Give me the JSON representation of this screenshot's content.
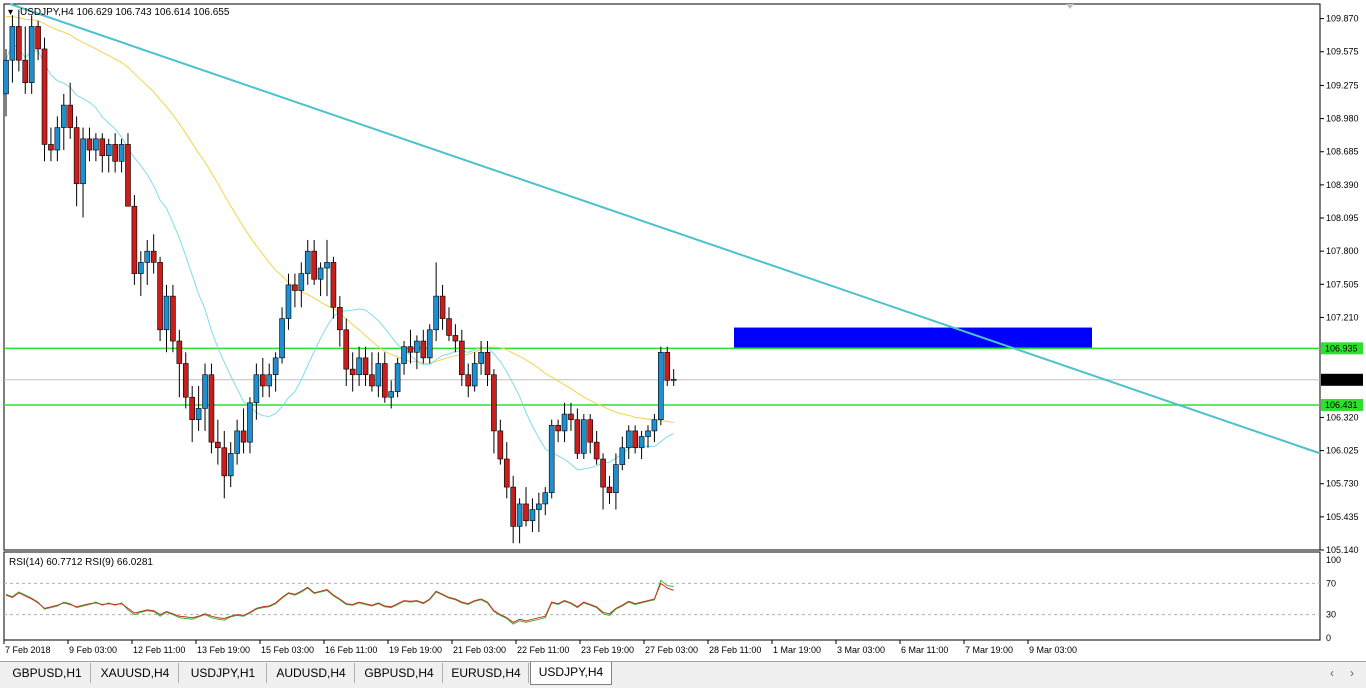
{
  "symbol_header": "USDJPY,H4  106.629 106.743 106.614 106.655",
  "rsi_header": "RSI(14) 60.7712  RSI(9) 66.0281",
  "price_axis": [
    "109.870",
    "109.575",
    "109.275",
    "108.980",
    "108.685",
    "108.390",
    "108.095",
    "107.800",
    "107.505",
    "107.210",
    "106.320",
    "106.025",
    "105.730",
    "105.435",
    "105.140"
  ],
  "rsi_axis": [
    "100",
    "70",
    "30",
    "0"
  ],
  "time_axis": [
    "7 Feb 2018",
    "9 Feb 03:00",
    "12 Feb 11:00",
    "13 Feb 19:00",
    "15 Feb 03:00",
    "16 Feb 11:00",
    "19 Feb 19:00",
    "21 Feb 03:00",
    "22 Feb 11:00",
    "23 Feb 19:00",
    "27 Feb 03:00",
    "28 Feb 11:00",
    "1 Mar 19:00",
    "3 Mar 03:00",
    "6 Mar 11:00",
    "7 Mar 19:00",
    "9 Mar 03:00"
  ],
  "level_labels": {
    "upper": "106.935",
    "current": "106.655",
    "lower": "106.431"
  },
  "tabs": [
    "GBPUSD,H1",
    "XAUUSD,H4",
    "USDJPY,H1",
    "AUDUSD,H4",
    "GBPUSD,H4",
    "EURUSD,H4",
    "USDJPY,H4"
  ],
  "active_tab": "USDJPY,H4",
  "colors": {
    "bull": "#1e8fd0",
    "bear": "#c81e1e",
    "trendline": "#4cc2cc",
    "ma_fast": "#7fdcf0",
    "ma_slow": "#f5d24a",
    "level": "#2ee02e",
    "zone": "#0000ff",
    "rsi14": "#c8321e",
    "rsi9": "#3cb43c"
  },
  "chart_data": {
    "type": "candlestick",
    "symbol": "USDJPY",
    "timeframe": "H4",
    "ylim": [
      105.14,
      110.0
    ],
    "rsi_ylim": [
      0,
      100
    ],
    "ohlc": [
      [
        109.2,
        109.6,
        109.0,
        109.5
      ],
      [
        109.5,
        109.9,
        109.3,
        109.8
      ],
      [
        109.8,
        109.95,
        109.4,
        109.5
      ],
      [
        109.5,
        109.8,
        109.2,
        109.3
      ],
      [
        109.3,
        109.9,
        109.2,
        109.8
      ],
      [
        109.8,
        109.85,
        109.5,
        109.6
      ],
      [
        109.6,
        109.7,
        108.6,
        108.75
      ],
      [
        108.75,
        108.9,
        108.6,
        108.7
      ],
      [
        108.7,
        109.0,
        108.6,
        108.9
      ],
      [
        108.9,
        109.2,
        108.7,
        109.1
      ],
      [
        109.1,
        109.3,
        108.8,
        108.9
      ],
      [
        108.9,
        109.0,
        108.2,
        108.4
      ],
      [
        108.4,
        108.9,
        108.1,
        108.8
      ],
      [
        108.8,
        108.9,
        108.6,
        108.7
      ],
      [
        108.7,
        108.85,
        108.6,
        108.8
      ],
      [
        108.8,
        108.85,
        108.5,
        108.65
      ],
      [
        108.65,
        108.8,
        108.5,
        108.75
      ],
      [
        108.75,
        108.85,
        108.5,
        108.6
      ],
      [
        108.6,
        108.8,
        108.5,
        108.75
      ],
      [
        108.75,
        108.85,
        108.2,
        108.2
      ],
      [
        108.2,
        108.3,
        107.5,
        107.6
      ],
      [
        107.6,
        107.8,
        107.4,
        107.7
      ],
      [
        107.7,
        107.9,
        107.5,
        107.8
      ],
      [
        107.8,
        107.95,
        107.6,
        107.7
      ],
      [
        107.7,
        107.75,
        107.0,
        107.1
      ],
      [
        107.1,
        107.5,
        106.9,
        107.4
      ],
      [
        107.4,
        107.5,
        106.9,
        107.0
      ],
      [
        107.0,
        107.1,
        106.5,
        106.8
      ],
      [
        106.8,
        106.9,
        106.4,
        106.5
      ],
      [
        106.5,
        106.6,
        106.1,
        106.3
      ],
      [
        106.3,
        106.6,
        106.2,
        106.4
      ],
      [
        106.4,
        106.8,
        106.2,
        106.7
      ],
      [
        106.7,
        106.8,
        106.0,
        106.1
      ],
      [
        106.1,
        106.3,
        105.9,
        106.05
      ],
      [
        106.05,
        106.2,
        105.6,
        105.8
      ],
      [
        105.8,
        106.1,
        105.7,
        106.0
      ],
      [
        106.0,
        106.3,
        105.9,
        106.2
      ],
      [
        106.2,
        106.4,
        106.0,
        106.1
      ],
      [
        106.1,
        106.5,
        106.0,
        106.45
      ],
      [
        106.45,
        106.8,
        106.3,
        106.7
      ],
      [
        106.7,
        106.85,
        106.5,
        106.6
      ],
      [
        106.6,
        106.8,
        106.5,
        106.7
      ],
      [
        106.7,
        106.9,
        106.55,
        106.85
      ],
      [
        106.85,
        107.3,
        106.8,
        107.2
      ],
      [
        107.2,
        107.6,
        107.1,
        107.5
      ],
      [
        107.5,
        107.6,
        107.3,
        107.45
      ],
      [
        107.45,
        107.7,
        107.3,
        107.6
      ],
      [
        107.6,
        107.9,
        107.5,
        107.8
      ],
      [
        107.8,
        107.9,
        107.5,
        107.55
      ],
      [
        107.55,
        107.7,
        107.4,
        107.65
      ],
      [
        107.65,
        107.9,
        107.4,
        107.7
      ],
      [
        107.7,
        107.75,
        107.2,
        107.3
      ],
      [
        107.3,
        107.4,
        106.95,
        107.1
      ],
      [
        107.1,
        107.2,
        106.6,
        106.75
      ],
      [
        106.75,
        106.9,
        106.55,
        106.7
      ],
      [
        106.7,
        106.95,
        106.6,
        106.85
      ],
      [
        106.85,
        106.95,
        106.6,
        106.7
      ],
      [
        106.7,
        106.9,
        106.55,
        106.6
      ],
      [
        106.6,
        106.9,
        106.5,
        106.8
      ],
      [
        106.8,
        106.9,
        106.45,
        106.5
      ],
      [
        106.5,
        106.65,
        106.4,
        106.55
      ],
      [
        106.55,
        106.85,
        106.5,
        106.8
      ],
      [
        106.8,
        107.0,
        106.7,
        106.95
      ],
      [
        106.95,
        107.1,
        106.8,
        106.9
      ],
      [
        106.9,
        107.05,
        106.75,
        107.0
      ],
      [
        107.0,
        107.1,
        106.8,
        106.85
      ],
      [
        106.85,
        107.15,
        106.8,
        107.1
      ],
      [
        107.1,
        107.7,
        107.0,
        107.4
      ],
      [
        107.4,
        107.5,
        107.1,
        107.2
      ],
      [
        107.2,
        107.3,
        107.0,
        107.05
      ],
      [
        107.05,
        107.15,
        106.9,
        107.0
      ],
      [
        107.0,
        107.1,
        106.6,
        106.7
      ],
      [
        106.7,
        106.8,
        106.5,
        106.6
      ],
      [
        106.6,
        106.9,
        106.55,
        106.8
      ],
      [
        106.8,
        107.0,
        106.7,
        106.9
      ],
      [
        106.9,
        107.0,
        106.6,
        106.7
      ],
      [
        106.7,
        106.75,
        106.0,
        106.2
      ],
      [
        106.2,
        106.3,
        105.9,
        105.95
      ],
      [
        105.95,
        106.1,
        105.6,
        105.7
      ],
      [
        105.7,
        105.8,
        105.2,
        105.35
      ],
      [
        105.35,
        105.6,
        105.2,
        105.55
      ],
      [
        105.55,
        105.7,
        105.35,
        105.4
      ],
      [
        105.4,
        105.6,
        105.3,
        105.5
      ],
      [
        105.5,
        105.65,
        105.3,
        105.55
      ],
      [
        105.55,
        105.7,
        105.45,
        105.65
      ],
      [
        105.65,
        106.3,
        105.6,
        106.25
      ],
      [
        106.25,
        106.3,
        106.1,
        106.2
      ],
      [
        106.2,
        106.45,
        106.1,
        106.35
      ],
      [
        106.35,
        106.45,
        106.2,
        106.3
      ],
      [
        106.3,
        106.4,
        105.95,
        106.0
      ],
      [
        106.0,
        106.35,
        105.95,
        106.3
      ],
      [
        106.3,
        106.35,
        106.0,
        106.1
      ],
      [
        106.1,
        106.2,
        105.9,
        105.95
      ],
      [
        105.95,
        106.0,
        105.5,
        105.7
      ],
      [
        105.7,
        105.8,
        105.55,
        105.65
      ],
      [
        105.65,
        106.0,
        105.5,
        105.9
      ],
      [
        105.9,
        106.15,
        105.85,
        106.05
      ],
      [
        106.05,
        106.25,
        105.95,
        106.2
      ],
      [
        106.2,
        106.25,
        106.0,
        106.05
      ],
      [
        106.05,
        106.2,
        105.95,
        106.15
      ],
      [
        106.15,
        106.25,
        106.05,
        106.2
      ],
      [
        106.2,
        106.35,
        106.1,
        106.3
      ],
      [
        106.3,
        106.95,
        106.25,
        106.9
      ],
      [
        106.9,
        106.95,
        106.6,
        106.65
      ],
      [
        106.65,
        106.75,
        106.6,
        106.66
      ]
    ],
    "rsi14_values": [
      55,
      52,
      58,
      54,
      50,
      45,
      38,
      40,
      42,
      45,
      43,
      40,
      42,
      44,
      45,
      43,
      44,
      43,
      44,
      38,
      32,
      34,
      36,
      35,
      30,
      34,
      31,
      28,
      27,
      26,
      28,
      31,
      28,
      26,
      25,
      28,
      30,
      29,
      33,
      38,
      40,
      41,
      45,
      52,
      58,
      56,
      60,
      65,
      58,
      60,
      62,
      55,
      50,
      44,
      43,
      46,
      44,
      42,
      45,
      41,
      40,
      44,
      48,
      47,
      48,
      45,
      50,
      60,
      56,
      52,
      50,
      46,
      44,
      48,
      50,
      46,
      35,
      30,
      26,
      20,
      24,
      22,
      24,
      26,
      28,
      46,
      44,
      48,
      45,
      40,
      46,
      43,
      40,
      33,
      31,
      38,
      42,
      47,
      44,
      46,
      48,
      50,
      70,
      64,
      61
    ],
    "rsi9_values": [
      56,
      53,
      59,
      55,
      51,
      46,
      37,
      39,
      41,
      46,
      44,
      39,
      41,
      43,
      46,
      42,
      45,
      42,
      45,
      36,
      30,
      33,
      35,
      34,
      28,
      33,
      30,
      26,
      25,
      24,
      27,
      30,
      26,
      24,
      23,
      27,
      29,
      28,
      32,
      37,
      39,
      40,
      44,
      51,
      57,
      55,
      59,
      64,
      57,
      59,
      61,
      54,
      49,
      43,
      42,
      45,
      43,
      41,
      44,
      40,
      39,
      43,
      47,
      46,
      47,
      44,
      49,
      59,
      55,
      51,
      49,
      45,
      43,
      47,
      49,
      45,
      34,
      29,
      25,
      18,
      22,
      20,
      22,
      24,
      26,
      45,
      43,
      47,
      44,
      39,
      45,
      42,
      39,
      31,
      29,
      37,
      41,
      46,
      43,
      45,
      47,
      49,
      74,
      67,
      66
    ],
    "levels": [
      106.935,
      106.431
    ],
    "current_price": 106.655,
    "rsi_levels": [
      70,
      30
    ]
  }
}
